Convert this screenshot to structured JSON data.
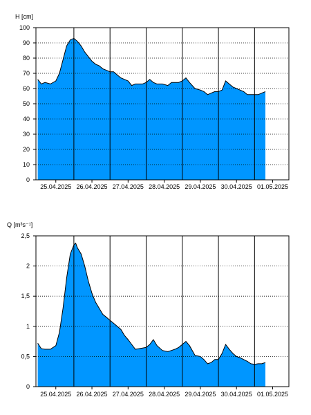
{
  "chart_data": [
    {
      "type": "area",
      "ylabel": "H [cm]",
      "ylim": [
        0,
        100
      ],
      "yticks": [
        0,
        10,
        20,
        30,
        40,
        50,
        60,
        70,
        80,
        90,
        100
      ],
      "ytick_labels": [
        "0",
        "10",
        "20",
        "30",
        "40",
        "50",
        "60",
        "70",
        "80",
        "90",
        "100"
      ],
      "xlim": [
        -0.05,
        6.95
      ],
      "xticks": [
        0.5,
        1.5,
        2.5,
        3.5,
        4.5,
        5.5,
        6.5
      ],
      "xtick_labels": [
        "25.04.2025",
        "26.04.2025",
        "27.04.2025",
        "28.04.2025",
        "29.04.2025",
        "30.04.2025",
        "01.05.2025"
      ],
      "day_lines": [
        1,
        2,
        3,
        4,
        5,
        6
      ],
      "grid": true,
      "fill_color": "#0096ff",
      "x": [
        0,
        0.1,
        0.2,
        0.35,
        0.5,
        0.6,
        0.7,
        0.8,
        0.9,
        1.0,
        1.05,
        1.1,
        1.2,
        1.3,
        1.4,
        1.5,
        1.6,
        1.7,
        1.8,
        1.9,
        2.0,
        2.1,
        2.2,
        2.3,
        2.4,
        2.5,
        2.6,
        2.7,
        2.8,
        2.9,
        3.0,
        3.1,
        3.2,
        3.3,
        3.45,
        3.6,
        3.7,
        3.8,
        3.9,
        4.0,
        4.1,
        4.2,
        4.35,
        4.5,
        4.6,
        4.7,
        4.8,
        4.9,
        5.0,
        5.1,
        5.2,
        5.3,
        5.4,
        5.5,
        5.6,
        5.7,
        5.8,
        5.9,
        6.0,
        6.1,
        6.2,
        6.3
      ],
      "y": [
        66,
        63,
        64,
        63,
        65,
        70,
        79,
        88,
        92,
        93,
        92,
        91,
        88,
        84,
        81,
        78,
        76,
        75,
        73,
        72,
        71,
        71,
        69,
        67,
        66,
        65,
        62,
        63,
        63,
        63,
        64,
        66,
        64,
        63,
        63,
        62,
        64,
        64,
        64,
        65,
        67,
        64,
        60,
        59,
        58,
        56,
        57,
        58,
        58,
        59,
        65,
        63,
        61,
        60,
        59,
        58,
        56,
        56,
        56,
        56,
        57,
        58
      ]
    },
    {
      "type": "area",
      "ylabel": "Q [m³s⁻¹]",
      "ylim": [
        0,
        2.5
      ],
      "yticks": [
        0,
        0.5,
        1,
        1.5,
        2,
        2.5
      ],
      "ytick_labels": [
        "0",
        "0,5",
        "1",
        "1,5",
        "2",
        "2,5"
      ],
      "xlim": [
        -0.05,
        6.95
      ],
      "xticks": [
        0.5,
        1.5,
        2.5,
        3.5,
        4.5,
        5.5,
        6.5
      ],
      "xtick_labels": [
        "25.04.2025",
        "26.04.2025",
        "27.04.2025",
        "28.04.2025",
        "29.04.2025",
        "30.04.2025",
        "01.05.2025"
      ],
      "day_lines": [
        1,
        2,
        3,
        4,
        5,
        6
      ],
      "grid": true,
      "fill_color": "#0096ff",
      "x": [
        0,
        0.1,
        0.2,
        0.35,
        0.5,
        0.6,
        0.7,
        0.8,
        0.9,
        1.0,
        1.05,
        1.1,
        1.2,
        1.3,
        1.4,
        1.5,
        1.6,
        1.7,
        1.8,
        1.9,
        2.0,
        2.1,
        2.2,
        2.3,
        2.4,
        2.5,
        2.6,
        2.7,
        2.8,
        2.9,
        3.0,
        3.1,
        3.2,
        3.3,
        3.45,
        3.6,
        3.7,
        3.8,
        3.9,
        4.0,
        4.1,
        4.2,
        4.35,
        4.5,
        4.6,
        4.7,
        4.8,
        4.9,
        5.0,
        5.1,
        5.2,
        5.3,
        5.4,
        5.5,
        5.6,
        5.7,
        5.8,
        5.9,
        6.0,
        6.1,
        6.2,
        6.3
      ],
      "y": [
        0.72,
        0.63,
        0.62,
        0.62,
        0.68,
        0.9,
        1.3,
        1.8,
        2.2,
        2.35,
        2.38,
        2.3,
        2.2,
        2.0,
        1.75,
        1.55,
        1.4,
        1.3,
        1.2,
        1.15,
        1.1,
        1.05,
        1.0,
        0.95,
        0.85,
        0.78,
        0.7,
        0.62,
        0.63,
        0.64,
        0.65,
        0.7,
        0.78,
        0.68,
        0.6,
        0.58,
        0.6,
        0.62,
        0.65,
        0.7,
        0.75,
        0.68,
        0.52,
        0.5,
        0.45,
        0.38,
        0.4,
        0.45,
        0.45,
        0.55,
        0.7,
        0.62,
        0.55,
        0.5,
        0.48,
        0.45,
        0.42,
        0.38,
        0.37,
        0.38,
        0.38,
        0.4
      ]
    }
  ]
}
